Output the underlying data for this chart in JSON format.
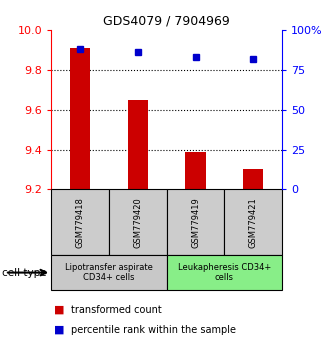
{
  "title": "GDS4079 / 7904969",
  "samples": [
    "GSM779418",
    "GSM779420",
    "GSM779419",
    "GSM779421"
  ],
  "transformed_count": [
    9.91,
    9.65,
    9.39,
    9.3
  ],
  "percentile_rank": [
    88,
    86,
    83,
    82
  ],
  "ylim_left": [
    9.2,
    10.0
  ],
  "ylim_right": [
    0,
    100
  ],
  "yticks_left": [
    9.2,
    9.4,
    9.6,
    9.8,
    10.0
  ],
  "yticks_right": [
    0,
    25,
    50,
    75,
    100
  ],
  "ytick_right_labels": [
    "0",
    "25",
    "50",
    "75",
    "100%"
  ],
  "bar_color": "#cc0000",
  "dot_color": "#0000cc",
  "bar_bottom": 9.2,
  "bar_width": 0.35,
  "groups": [
    {
      "label": "Lipotransfer aspirate\nCD34+ cells",
      "start": 0,
      "end": 2,
      "color": "#c8c8c8"
    },
    {
      "label": "Leukapheresis CD34+\ncells",
      "start": 2,
      "end": 4,
      "color": "#88ee88"
    }
  ],
  "cell_type_label": "cell type",
  "legend_items": [
    {
      "color": "#cc0000",
      "label": "transformed count"
    },
    {
      "color": "#0000cc",
      "label": "percentile rank within the sample"
    }
  ],
  "grid_yticks": [
    9.4,
    9.6,
    9.8
  ],
  "title_fontsize": 9,
  "axis_label_fontsize": 8,
  "sample_fontsize": 6,
  "group_fontsize": 6,
  "legend_fontsize": 7
}
